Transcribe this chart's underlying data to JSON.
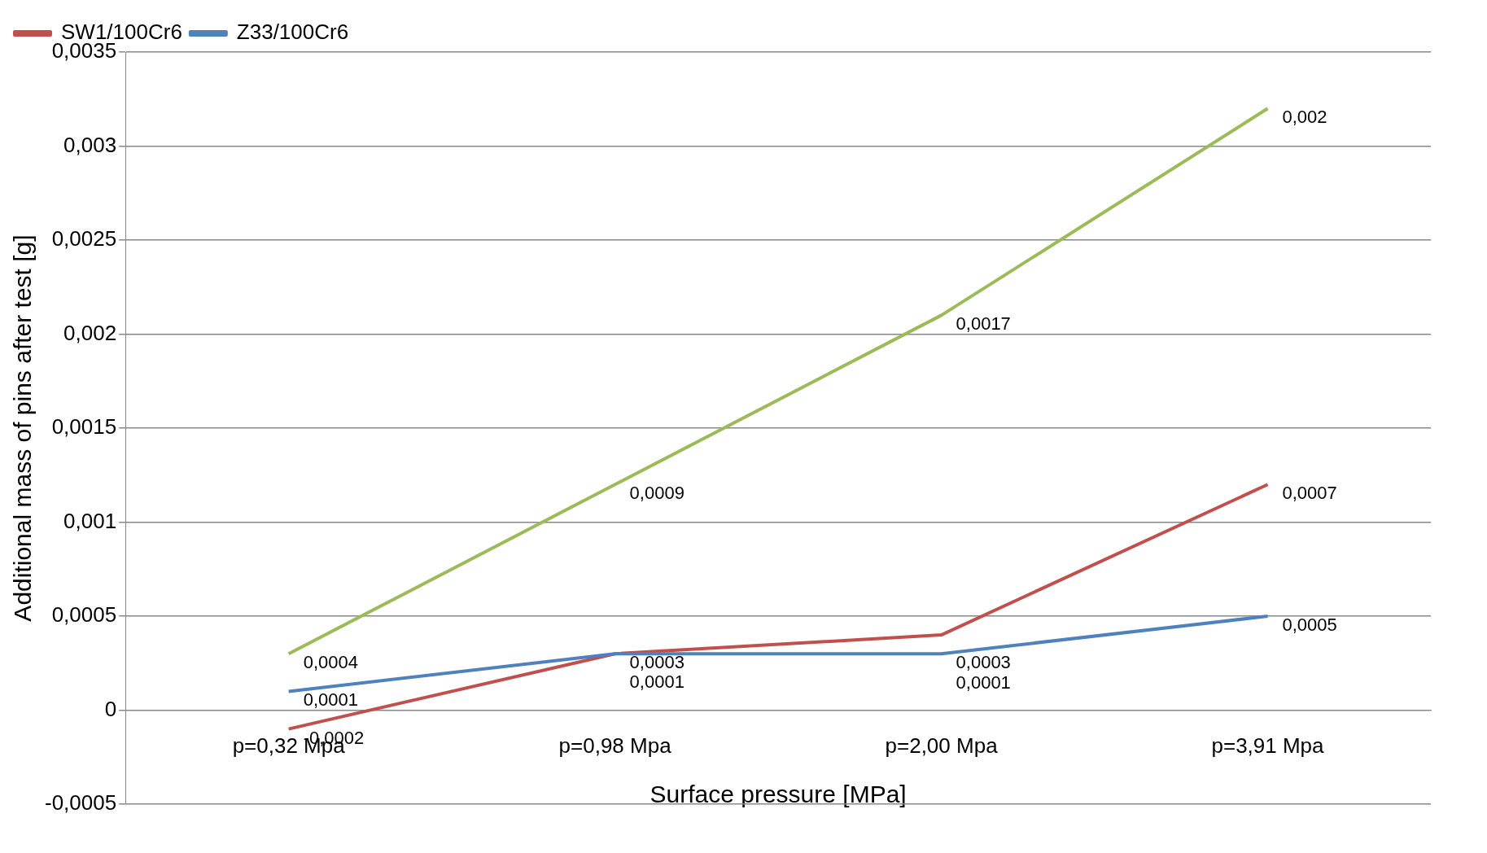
{
  "chart_data": {
    "type": "line",
    "xlabel": "Surface pressure [MPa]",
    "ylabel": "Additional mass of pins after test [g]",
    "categories": [
      "p=0,32 Mpa",
      "p=0,98 Mpa",
      "p=2,00 Mpa",
      "p=3,91 Mpa"
    ],
    "series": [
      {
        "name": "Z33/100Cr6",
        "color": "#4f81bd",
        "values": [
          0.0001,
          0.0003,
          0.0003,
          0.0005
        ]
      },
      {
        "name": "SW1/100Cr6",
        "color": "#c0504d",
        "values": [
          -0.0001,
          0.0003,
          0.0004,
          0.0012
        ]
      },
      {
        "color": "#9bbb59",
        "values": [
          0.0003,
          0.0012,
          0.0021,
          0.0032
        ]
      }
    ],
    "annotations": [
      {
        "text": "0,0001",
        "x": "p=0,32 Mpa",
        "y": 0.0001
      },
      {
        "text": "0,0003",
        "x": "p=0,98 Mpa",
        "y": 0.0003
      },
      {
        "text": "0,0003",
        "x": "p=2,00 Mpa",
        "y": 0.0003
      },
      {
        "text": "0,0005",
        "x": "p=3,91 Mpa",
        "y": 0.0005
      },
      {
        "text": "-0,0002",
        "x": "p=0,32 Mpa",
        "y": -0.0001
      },
      {
        "text": "0,0001",
        "x": "p=0,98 Mpa",
        "y": 0.0003
      },
      {
        "text": "0,0001",
        "x": "p=2,00 Mpa",
        "y": 0.0004
      },
      {
        "text": "0,0007",
        "x": "p=3,91 Mpa",
        "y": 0.0012
      },
      {
        "text": "0,0004",
        "x": "p=0,32 Mpa",
        "y": 0.0003
      },
      {
        "text": "0,0009",
        "x": "p=0,98 Mpa",
        "y": 0.0012
      },
      {
        "text": "0,0017",
        "x": "p=2,00 Mpa",
        "y": 0.0021
      },
      {
        "text": "0,002",
        "x": "p=3,91 Mpa",
        "y": 0.0032
      }
    ],
    "ylim": [
      -0.0005,
      0.0035
    ],
    "yticks": [
      {
        "value": -0.0005,
        "label": "-0,0005"
      },
      {
        "value": 0,
        "label": "0"
      },
      {
        "value": 0.0005,
        "label": "0,0005"
      },
      {
        "value": 0.001,
        "label": "0,001"
      },
      {
        "value": 0.0015,
        "label": "0,0015"
      },
      {
        "value": 0.002,
        "label": "0,002"
      },
      {
        "value": 0.0025,
        "label": "0,0025"
      },
      {
        "value": 0.003,
        "label": "0,003"
      },
      {
        "value": 0.0035,
        "label": "0,0035"
      }
    ],
    "grid": "y",
    "legend": "top left",
    "marker": "none",
    "line_style": "solid"
  }
}
